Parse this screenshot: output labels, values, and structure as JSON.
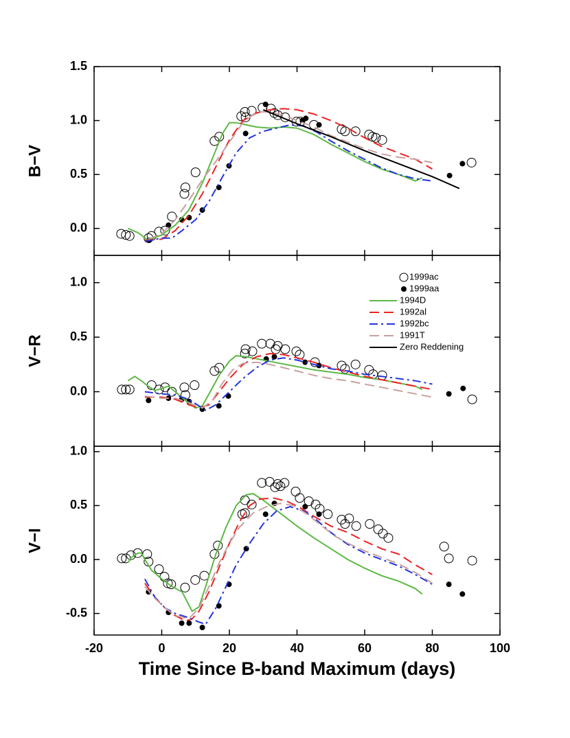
{
  "chart_data": [
    {
      "type": "line",
      "ylabel": "B−V",
      "xlim": [
        -20,
        100
      ],
      "xticks": [
        -20,
        0,
        20,
        40,
        60,
        80,
        100
      ],
      "ylim": [
        -0.25,
        1.5
      ],
      "yticks": [
        {
          "value": 0,
          "label": "0.0"
        },
        0.5,
        {
          "value": 1,
          "label": "1.0"
        },
        1.5
      ],
      "series": [
        {
          "name": "1999ac",
          "style": "open-circle",
          "color": "#000000",
          "x": [
            -12,
            -10.6,
            -9.5,
            -3.9,
            -3,
            -0.8,
            1,
            3,
            6.7,
            7,
            10,
            15.6,
            17,
            23.5,
            24.6,
            24.8,
            26.6,
            29.8,
            32.3,
            33.3,
            34.3,
            36.5,
            39.8,
            41,
            45,
            53.2,
            54.2,
            57.3,
            61.3,
            62.3,
            63.3,
            65.2,
            91.6
          ],
          "values": [
            -0.05,
            -0.06,
            -0.07,
            -0.09,
            -0.07,
            -0.03,
            -0.02,
            0.11,
            0.32,
            0.38,
            0.52,
            0.81,
            0.85,
            1.04,
            1.08,
            1.03,
            1.09,
            1.12,
            1.11,
            1.07,
            1.05,
            1.03,
            0.99,
            0.99,
            0.96,
            0.92,
            0.9,
            0.9,
            0.87,
            0.85,
            0.84,
            0.82,
            0.61
          ]
        },
        {
          "name": "1999aa",
          "style": "filled-circle",
          "color": "#000000",
          "x": [
            -3.7,
            2,
            5.9,
            8.1,
            12,
            16.9,
            19.9,
            24.8,
            30.7,
            41.6,
            42.6,
            46.5,
            85.1,
            88.9
          ],
          "values": [
            -0.11,
            0.03,
            0.08,
            0.1,
            0.17,
            0.38,
            0.58,
            0.88,
            1.15,
            1.0,
            1.02,
            0.96,
            0.49,
            0.6
          ]
        },
        {
          "name": "1994D",
          "style": "solid",
          "color": "#5cb843",
          "x": [
            -10,
            -7,
            -4,
            0,
            4,
            8,
            12,
            15,
            18,
            20,
            22,
            25,
            28,
            32,
            36,
            40,
            45,
            50,
            55,
            60,
            65,
            70,
            75,
            77
          ],
          "values": [
            0.0,
            -0.04,
            -0.11,
            -0.06,
            0.03,
            0.17,
            0.42,
            0.65,
            0.88,
            0.98,
            0.98,
            0.96,
            0.94,
            0.93,
            0.94,
            0.93,
            0.87,
            0.78,
            0.7,
            0.62,
            0.55,
            0.5,
            0.44,
            0.47
          ]
        },
        {
          "name": "1992al",
          "style": "dashed",
          "color": "#ee2222",
          "x": [
            -5,
            0,
            4,
            8,
            12,
            16,
            20,
            24,
            28,
            32,
            36,
            40,
            45,
            50,
            55,
            60,
            65,
            70,
            75,
            80
          ],
          "values": [
            -0.11,
            -0.1,
            -0.02,
            0.12,
            0.32,
            0.57,
            0.82,
            1.0,
            1.07,
            1.1,
            1.11,
            1.1,
            1.06,
            1.0,
            0.93,
            0.84,
            0.76,
            0.7,
            0.64,
            0.55
          ]
        },
        {
          "name": "1992bc",
          "style": "dashdot",
          "color": "#2233dd",
          "x": [
            -5,
            0,
            3,
            6,
            10,
            14,
            18,
            22,
            26,
            30,
            34,
            38,
            42,
            46,
            50,
            55,
            60,
            65,
            70,
            75,
            80
          ],
          "values": [
            -0.12,
            -0.09,
            -0.09,
            -0.02,
            0.08,
            0.25,
            0.48,
            0.7,
            0.84,
            0.9,
            0.93,
            0.96,
            0.95,
            0.89,
            0.81,
            0.72,
            0.64,
            0.56,
            0.5,
            0.46,
            0.44
          ]
        },
        {
          "name": "1991T",
          "style": "dashed",
          "color": "#c9a0a0",
          "x": [
            -4,
            0,
            4,
            8,
            12,
            16,
            20,
            24,
            28,
            32,
            36,
            40,
            45,
            50,
            55,
            60,
            65,
            70,
            75,
            80
          ],
          "values": [
            -0.1,
            -0.05,
            0.08,
            0.26,
            0.45,
            0.62,
            0.8,
            0.98,
            1.08,
            1.08,
            1.05,
            1.0,
            0.94,
            0.86,
            0.8,
            0.74,
            0.69,
            0.66,
            0.64,
            0.61
          ]
        },
        {
          "name": "Zero Reddening",
          "style": "solid",
          "color": "#000000",
          "x": [
            30,
            40,
            50,
            60,
            70,
            80,
            88
          ],
          "values": [
            1.1,
            0.97,
            0.85,
            0.72,
            0.6,
            0.48,
            0.37
          ]
        }
      ]
    },
    {
      "type": "line",
      "ylabel": "V−R",
      "xlim": [
        -20,
        100
      ],
      "xticks": [
        -20,
        0,
        20,
        40,
        60,
        80,
        100
      ],
      "ylim": [
        -0.5,
        1.25
      ],
      "yticks": [
        {
          "value": 0,
          "label": "0.0"
        },
        0.5,
        {
          "value": 1,
          "label": "1.0"
        }
      ],
      "legend": "upper right",
      "series": [
        {
          "name": "1999ac",
          "style": "open-circle",
          "color": "#000000",
          "x": [
            -11.8,
            -10.6,
            -9.5,
            -3,
            -0.8,
            1,
            3,
            6.7,
            7,
            9.7,
            15.6,
            17,
            24.6,
            24.8,
            26.8,
            29.6,
            32.1,
            33.7,
            34.3,
            36.5,
            39.8,
            40.8,
            45.3,
            53.2,
            54.2,
            57.3,
            61.3,
            62.5,
            65.2,
            91.8
          ],
          "values": [
            0.02,
            0.02,
            0.02,
            0.06,
            0.02,
            0.04,
            0.0,
            0.04,
            -0.03,
            0.06,
            0.19,
            0.22,
            0.35,
            0.39,
            0.37,
            0.44,
            0.44,
            0.39,
            0.42,
            0.39,
            0.37,
            0.34,
            0.27,
            0.24,
            0.21,
            0.25,
            0.2,
            0.16,
            0.15,
            -0.07
          ]
        },
        {
          "name": "1999aa",
          "style": "filled-circle",
          "color": "#000000",
          "x": [
            -3.9,
            2,
            5.9,
            8.1,
            12,
            16.9,
            19.7,
            30.9,
            33.3,
            42.4,
            46.5,
            84.9,
            89.1
          ],
          "values": [
            -0.08,
            -0.06,
            -0.07,
            -0.09,
            -0.16,
            -0.13,
            -0.04,
            0.3,
            0.32,
            0.27,
            0.24,
            -0.02,
            0.03
          ]
        },
        {
          "name": "1994D",
          "style": "solid",
          "color": "#5cb843",
          "x": [
            -10,
            -8,
            -6,
            -4,
            -2,
            0,
            2,
            4,
            7,
            10,
            12,
            14,
            17,
            20,
            22,
            25,
            30,
            35,
            40,
            45,
            50,
            55,
            60,
            65,
            70,
            75,
            77
          ],
          "values": [
            0.1,
            0.14,
            0.1,
            0.05,
            0.01,
            0.03,
            0.05,
            0.0,
            -0.08,
            -0.15,
            -0.13,
            -0.02,
            0.15,
            0.28,
            0.33,
            0.32,
            0.29,
            0.26,
            0.23,
            0.2,
            0.18,
            0.16,
            0.13,
            0.11,
            0.08,
            0.05,
            0.02
          ]
        },
        {
          "name": "1992al",
          "style": "dashed",
          "color": "#ee2222",
          "x": [
            -5,
            0,
            4,
            8,
            11,
            14,
            17,
            20,
            24,
            28,
            32,
            36,
            40,
            45,
            50,
            55,
            60,
            65,
            70,
            75,
            80
          ],
          "values": [
            -0.05,
            -0.05,
            -0.07,
            -0.12,
            -0.15,
            -0.12,
            0.0,
            0.12,
            0.25,
            0.32,
            0.35,
            0.34,
            0.31,
            0.27,
            0.22,
            0.18,
            0.14,
            0.11,
            0.08,
            0.05,
            0.02
          ]
        },
        {
          "name": "1992bc",
          "style": "dashdot",
          "color": "#2233dd",
          "x": [
            -5,
            0,
            4,
            7,
            10,
            13,
            16,
            20,
            24,
            28,
            32,
            36,
            40,
            45,
            50,
            55,
            60,
            65,
            70,
            75,
            80
          ],
          "values": [
            0.0,
            -0.02,
            -0.03,
            -0.06,
            -0.11,
            -0.17,
            -0.12,
            0.0,
            0.12,
            0.22,
            0.29,
            0.31,
            0.29,
            0.25,
            0.21,
            0.19,
            0.16,
            0.14,
            0.12,
            0.1,
            0.07
          ]
        },
        {
          "name": "1991T",
          "style": "dashed",
          "color": "#c9a0a0",
          "x": [
            -5,
            0,
            4,
            8,
            12,
            15,
            18,
            21,
            24,
            28,
            32,
            36,
            40,
            45,
            50,
            55,
            60,
            65,
            70,
            75,
            80
          ],
          "values": [
            -0.04,
            -0.06,
            -0.06,
            -0.1,
            -0.15,
            -0.08,
            0.08,
            0.2,
            0.26,
            0.27,
            0.25,
            0.22,
            0.19,
            0.15,
            0.12,
            0.1,
            0.07,
            0.04,
            0.01,
            -0.02,
            -0.05
          ]
        },
        {
          "name": "Zero Reddening",
          "style": "solid",
          "color": "#000000",
          "x": [],
          "values": []
        }
      ]
    },
    {
      "type": "line",
      "ylabel": "V−I",
      "xlabel": "Time Since B-band Maximum (days)",
      "xlim": [
        -20,
        100
      ],
      "xticks": [
        -20,
        0,
        20,
        40,
        60,
        80,
        100
      ],
      "ylim": [
        -0.7,
        1.05
      ],
      "yticks": [
        -0.5,
        {
          "value": 0,
          "label": "0.0"
        },
        0.5,
        {
          "value": 1,
          "label": "1.0"
        }
      ],
      "series": [
        {
          "name": "1999ac",
          "style": "open-circle",
          "color": "#000000",
          "x": [
            -11.8,
            -10.6,
            -9.1,
            -7.1,
            -4.3,
            -3.9,
            -0.8,
            0.8,
            1.8,
            2.8,
            6.9,
            9.9,
            12.6,
            15.6,
            16.6,
            23.8,
            24.6,
            24.6,
            26.6,
            29.6,
            31.9,
            33.5,
            34.3,
            35.1,
            36.3,
            39.6,
            40.8,
            43.5,
            45.5,
            46.7,
            49.1,
            53.2,
            54.2,
            55.4,
            57.5,
            61.5,
            64,
            65.4,
            67,
            83.5,
            84.9,
            91.8
          ],
          "values": [
            0.01,
            0.01,
            0.04,
            0.06,
            0.05,
            -0.02,
            -0.09,
            -0.16,
            -0.22,
            -0.23,
            -0.26,
            -0.19,
            -0.15,
            0.05,
            0.13,
            0.42,
            0.43,
            0.55,
            0.51,
            0.71,
            0.72,
            0.67,
            0.7,
            0.68,
            0.71,
            0.63,
            0.57,
            0.54,
            0.51,
            0.47,
            0.42,
            0.37,
            0.33,
            0.38,
            0.31,
            0.33,
            0.28,
            0.24,
            0.2,
            0.12,
            0.01,
            -0.01
          ]
        },
        {
          "name": "1999aa",
          "style": "filled-circle",
          "color": "#000000",
          "x": [
            -3.9,
            2,
            5.9,
            8.1,
            12,
            16.9,
            19.9,
            25,
            30.7,
            33.3,
            42.4,
            46.5,
            84.9,
            88.9
          ],
          "values": [
            -0.3,
            -0.49,
            -0.59,
            -0.59,
            -0.63,
            -0.43,
            -0.23,
            0.1,
            0.42,
            0.52,
            0.49,
            0.42,
            -0.23,
            -0.32
          ]
        },
        {
          "name": "1994D",
          "style": "solid",
          "color": "#5cb843",
          "x": [
            -10,
            -9,
            -7,
            -6,
            -5,
            -3,
            0,
            3,
            6,
            8,
            9,
            11,
            13,
            16,
            19,
            22,
            25,
            27,
            30,
            35,
            40,
            45,
            50,
            55,
            60,
            65,
            70,
            75,
            77
          ],
          "values": [
            -0.03,
            0.02,
            0.06,
            0.06,
            0.0,
            -0.1,
            -0.18,
            -0.25,
            -0.3,
            -0.42,
            -0.48,
            -0.44,
            -0.25,
            0.05,
            0.3,
            0.5,
            0.6,
            0.61,
            0.55,
            0.43,
            0.31,
            0.2,
            0.1,
            0.0,
            -0.08,
            -0.15,
            -0.2,
            -0.27,
            -0.32
          ]
        },
        {
          "name": "1992al",
          "style": "dashed",
          "color": "#ee2222",
          "x": [
            -5,
            -2,
            1,
            4,
            7,
            9,
            11,
            14,
            17,
            20,
            23,
            26,
            29,
            33,
            37,
            41,
            45,
            50,
            55,
            60,
            65,
            70,
            75,
            80
          ],
          "values": [
            -0.22,
            -0.35,
            -0.45,
            -0.52,
            -0.57,
            -0.55,
            -0.48,
            -0.3,
            -0.07,
            0.15,
            0.35,
            0.5,
            0.56,
            0.57,
            0.54,
            0.48,
            0.4,
            0.31,
            0.25,
            0.17,
            0.1,
            0.05,
            -0.05,
            -0.14
          ]
        },
        {
          "name": "1992bc",
          "style": "dashdot",
          "color": "#2233dd",
          "x": [
            -5,
            -2,
            1,
            4,
            8,
            11,
            13,
            16,
            19,
            22,
            26,
            30,
            34,
            38,
            42,
            46,
            50,
            55,
            60,
            65,
            70,
            75,
            80
          ],
          "values": [
            -0.18,
            -0.35,
            -0.45,
            -0.5,
            -0.54,
            -0.58,
            -0.6,
            -0.45,
            -0.25,
            -0.05,
            0.15,
            0.33,
            0.45,
            0.49,
            0.45,
            0.36,
            0.25,
            0.14,
            0.06,
            0.0,
            -0.06,
            -0.14,
            -0.23
          ]
        },
        {
          "name": "1991T",
          "style": "dashed",
          "color": "#c9a0a0",
          "x": [
            -5,
            -2,
            1,
            4,
            8,
            11,
            14,
            17,
            20,
            23,
            27,
            31,
            35,
            39,
            43,
            47,
            51,
            55,
            60,
            65,
            70,
            75,
            80
          ],
          "values": [
            -0.25,
            -0.36,
            -0.45,
            -0.52,
            -0.55,
            -0.45,
            -0.25,
            -0.03,
            0.15,
            0.3,
            0.43,
            0.49,
            0.52,
            0.5,
            0.42,
            0.32,
            0.22,
            0.15,
            0.08,
            0.02,
            -0.04,
            -0.12,
            -0.22
          ]
        }
      ]
    }
  ]
}
